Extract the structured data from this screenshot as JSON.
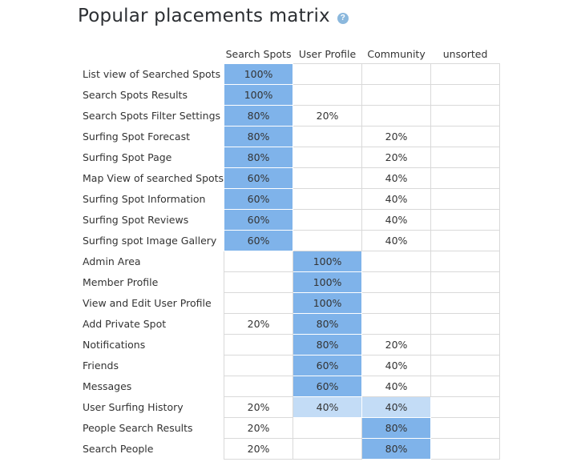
{
  "header": {
    "title": "Popular placements matrix",
    "help_icon": "?"
  },
  "chart_data": {
    "type": "heatmap",
    "title": "Popular placements matrix",
    "columns": [
      "Search Spots",
      "User Profile",
      "Community",
      "unsorted"
    ],
    "rows": [
      "List view of Searched Spots",
      "Search Spots Results",
      "Search Spots Filter Settings",
      "Surfing Spot Forecast",
      "Surfing Spot Page",
      "Map View of searched Spots",
      "Surfing Spot Information",
      "Surfing Spot Reviews",
      "Surfing spot Image Gallery",
      "Admin Area",
      "Member Profile",
      "View and Edit User Profile",
      "Add Private Spot",
      "Notifications",
      "Friends",
      "Messages",
      "User Surfing History",
      "People Search Results",
      "Search People"
    ],
    "values": [
      [
        100,
        null,
        null,
        null
      ],
      [
        100,
        null,
        null,
        null
      ],
      [
        80,
        20,
        null,
        null
      ],
      [
        80,
        null,
        20,
        null
      ],
      [
        80,
        null,
        20,
        null
      ],
      [
        60,
        null,
        40,
        null
      ],
      [
        60,
        null,
        40,
        null
      ],
      [
        60,
        null,
        40,
        null
      ],
      [
        60,
        null,
        40,
        null
      ],
      [
        null,
        100,
        null,
        null
      ],
      [
        null,
        100,
        null,
        null
      ],
      [
        null,
        100,
        null,
        null
      ],
      [
        20,
        80,
        null,
        null
      ],
      [
        null,
        80,
        20,
        null
      ],
      [
        null,
        60,
        40,
        null
      ],
      [
        null,
        60,
        40,
        null
      ],
      [
        20,
        40,
        40,
        null
      ],
      [
        20,
        null,
        80,
        null
      ],
      [
        20,
        null,
        80,
        null
      ]
    ],
    "unit": "%",
    "highlight_color": "#7fb3ea",
    "tie_color": "#c3dcf6"
  }
}
